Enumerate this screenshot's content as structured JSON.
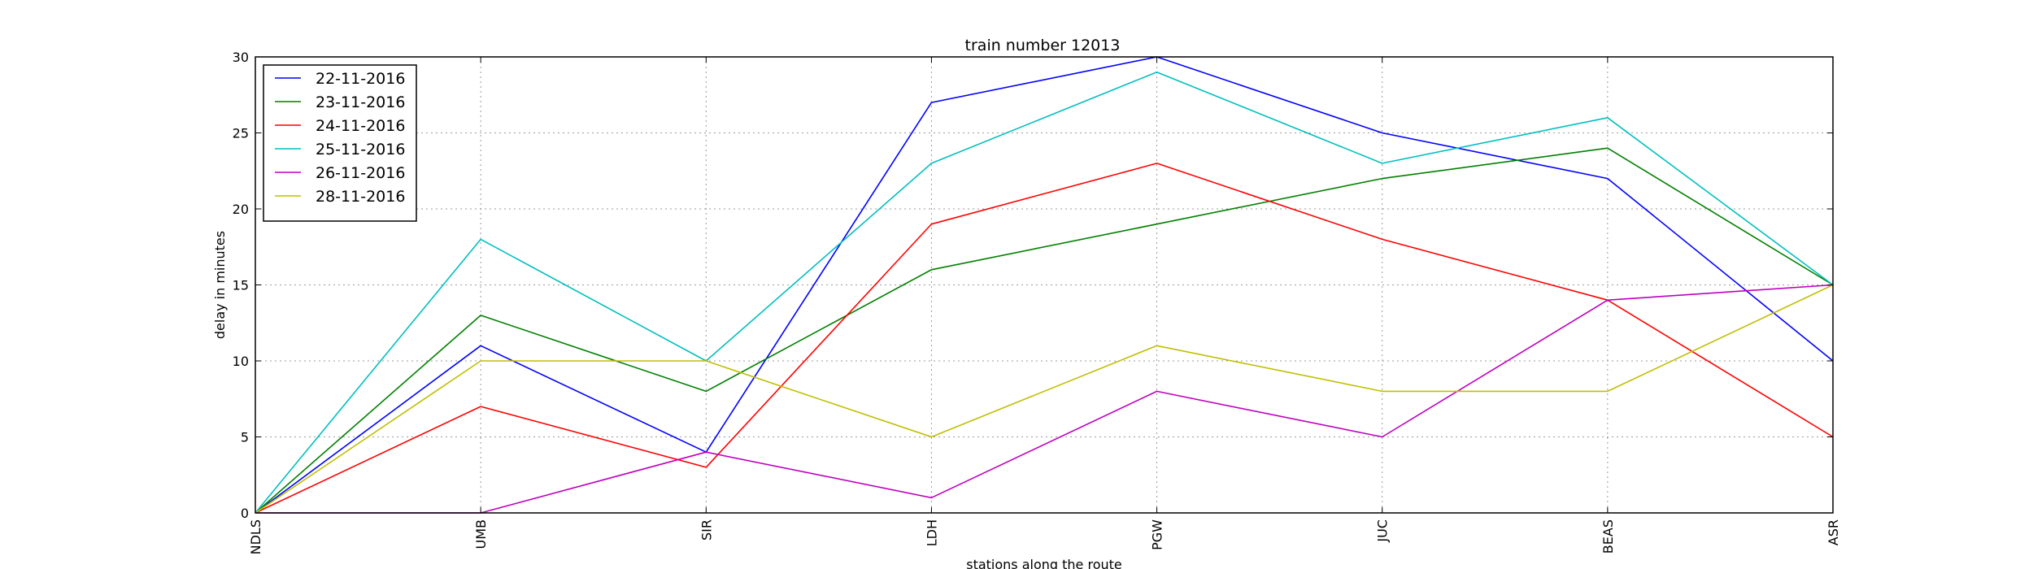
{
  "chart_data": {
    "type": "line",
    "title": "train number 12013",
    "xlabel": "stations along the route",
    "ylabel": "delay in minutes",
    "categories": [
      "NDLS",
      "UMB",
      "SIR",
      "LDH",
      "PGW",
      "JUC",
      "BEAS",
      "ASR"
    ],
    "ylim": [
      0,
      30
    ],
    "yticks": [
      "0",
      "5",
      "10",
      "15",
      "20",
      "25",
      "30"
    ],
    "grid": true,
    "legend_position": "top-left",
    "series": [
      {
        "name": "22-11-2016",
        "color": "#0000ff",
        "values": [
          0,
          11,
          4,
          27,
          30,
          25,
          22,
          10
        ]
      },
      {
        "name": "23-11-2016",
        "color": "#008000",
        "values": [
          0,
          13,
          8,
          16,
          19,
          22,
          24,
          15
        ]
      },
      {
        "name": "24-11-2016",
        "color": "#ff0000",
        "values": [
          0,
          7,
          3,
          19,
          23,
          18,
          14,
          5
        ]
      },
      {
        "name": "25-11-2016",
        "color": "#00bfbf",
        "values": [
          0,
          18,
          10,
          23,
          29,
          23,
          26,
          15
        ]
      },
      {
        "name": "26-11-2016",
        "color": "#bf00bf",
        "values": [
          0,
          0,
          4,
          1,
          8,
          5,
          14,
          15
        ]
      },
      {
        "name": "28-11-2016",
        "color": "#bfbf00",
        "values": [
          0,
          10,
          10,
          5,
          11,
          8,
          8,
          15
        ]
      }
    ]
  }
}
